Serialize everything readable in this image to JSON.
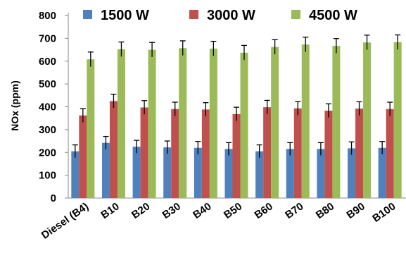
{
  "chart_data": {
    "type": "bar",
    "ylabel": "NOx (ppm)",
    "xlabel": "",
    "ylim": [
      0,
      800
    ],
    "yticks": [
      0,
      100,
      200,
      300,
      400,
      500,
      600,
      700,
      800
    ],
    "grid": false,
    "legend_position": "top",
    "categories": [
      "Diesel (B4)",
      "B10",
      "B20",
      "B30",
      "B40",
      "B50",
      "B60",
      "B70",
      "B80",
      "B90",
      "B100"
    ],
    "series": [
      {
        "name": "1500 W",
        "color": "#4f81bd",
        "values": [
          205,
          242,
          225,
          222,
          220,
          215,
          205,
          215,
          215,
          218,
          220
        ],
        "errors": [
          28,
          28,
          28,
          28,
          28,
          28,
          28,
          28,
          28,
          28,
          28
        ]
      },
      {
        "name": "3000 W",
        "color": "#c0504d",
        "values": [
          362,
          425,
          397,
          390,
          388,
          368,
          398,
          393,
          383,
          392,
          390
        ],
        "errors": [
          30,
          30,
          30,
          30,
          30,
          30,
          30,
          30,
          30,
          30,
          30
        ]
      },
      {
        "name": "4500 W",
        "color": "#9bbb59",
        "values": [
          608,
          652,
          650,
          657,
          655,
          637,
          662,
          673,
          667,
          682,
          683
        ],
        "errors": [
          32,
          32,
          32,
          32,
          32,
          32,
          32,
          32,
          32,
          32,
          32
        ]
      }
    ]
  }
}
